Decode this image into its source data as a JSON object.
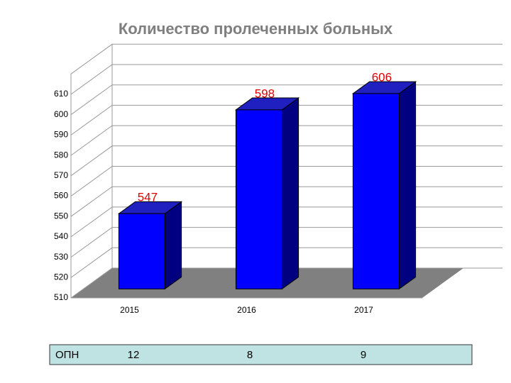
{
  "chart_data": {
    "type": "bar3d",
    "title": "Количество пролеченных больных",
    "categories": [
      "2015",
      "2016",
      "2017"
    ],
    "values": [
      547,
      598,
      606
    ],
    "color": "#0000ff",
    "label_color": "#e00000",
    "ylim": [
      510,
      620
    ],
    "yticks": [
      510,
      520,
      530,
      540,
      550,
      560,
      570,
      580,
      590,
      600,
      610
    ],
    "grid": true
  },
  "table": {
    "label": "ОПН",
    "cells": [
      "12",
      "8",
      "9"
    ]
  }
}
